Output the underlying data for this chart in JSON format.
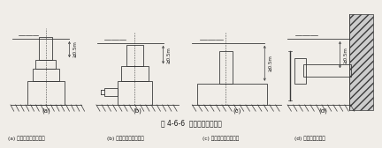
{
  "title": "图 4-6-6  吸水口的安装要求",
  "captions": [
    "(a) 上吸口立式潜水泵；",
    "(b) 下出口立式潜水泵；",
    "(c) 卧式潜水泵设挡板；",
    "(d) 吸水管口设挡板"
  ],
  "sub_labels": [
    "(a)",
    "(b)",
    "(c)",
    "(d)"
  ],
  "bg_color": "#f0ede8",
  "line_color": "#3a3a3a",
  "text_color": "#1a1a1a",
  "hatch_color": "#888888"
}
